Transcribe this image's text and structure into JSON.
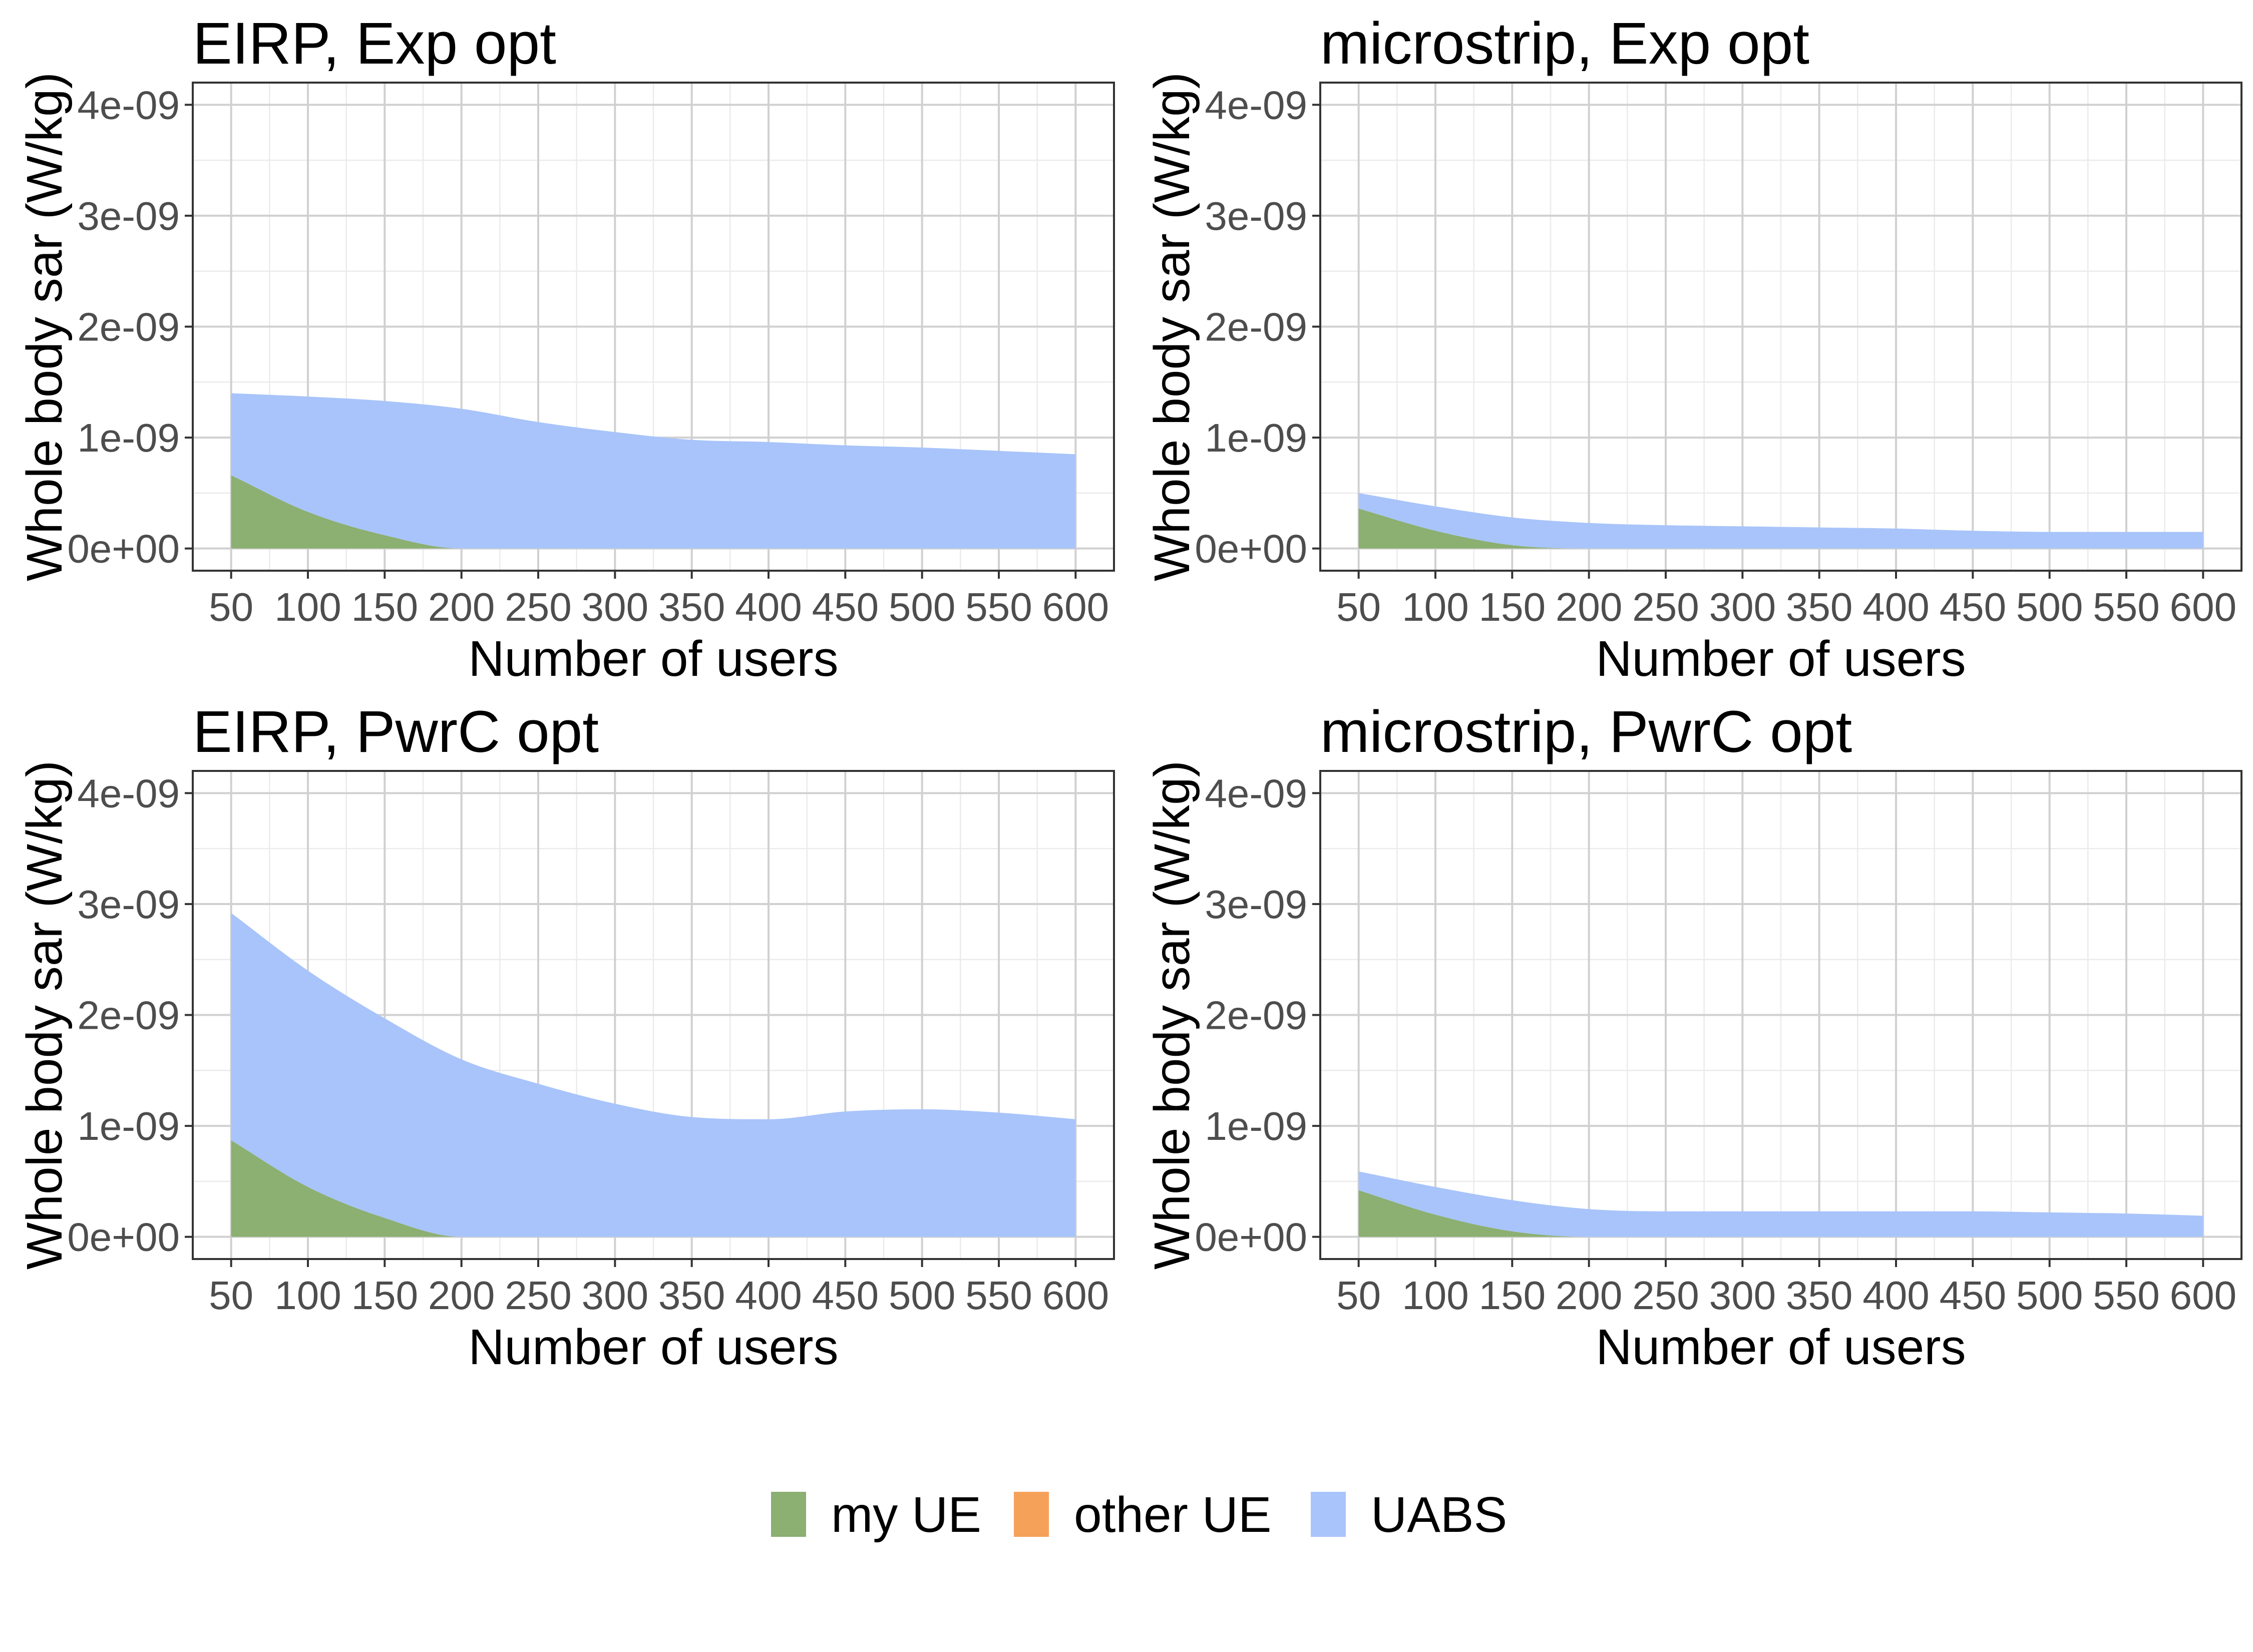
{
  "chart_data": [
    {
      "type": "area",
      "stacked": true,
      "title": "EIRP, Exp opt",
      "xlabel": "Number of users",
      "ylabel": "Whole body sar (W/kg)",
      "x": [
        50,
        100,
        150,
        200,
        250,
        300,
        350,
        400,
        450,
        500,
        550,
        600
      ],
      "xticks": [
        "50",
        "100",
        "150",
        "200",
        "250",
        "300",
        "350",
        "400",
        "450",
        "500",
        "550",
        "600"
      ],
      "yticks": [
        "0e+00",
        "1e-09",
        "2e-09",
        "3e-09",
        "4e-09"
      ],
      "ytick_values": [
        0,
        1e-09,
        2e-09,
        3e-09,
        4e-09
      ],
      "ylim": [
        -2e-10,
        4.2e-09
      ],
      "xlim": [
        25,
        625
      ],
      "grid": true,
      "series": [
        {
          "name": "my UE",
          "values": [
            6.6e-10,
            3.3e-10,
            1.2e-10,
            0,
            0,
            0,
            0,
            0,
            0,
            0,
            0,
            0
          ]
        },
        {
          "name": "other UE",
          "values": [
            0,
            0,
            0,
            0,
            0,
            0,
            0,
            0,
            0,
            0,
            0,
            0
          ]
        },
        {
          "name": "UABS",
          "values": [
            7.4e-10,
            1.04e-09,
            1.21e-09,
            1.26e-09,
            1.14e-09,
            1.05e-09,
            9.8e-10,
            9.6e-10,
            9.3e-10,
            9.1e-10,
            8.8e-10,
            8.5e-10
          ]
        }
      ]
    },
    {
      "type": "area",
      "stacked": true,
      "title": "microstrip, Exp opt",
      "xlabel": "Number of users",
      "ylabel": "Whole body sar (W/kg)",
      "x": [
        50,
        100,
        150,
        200,
        250,
        300,
        350,
        400,
        450,
        500,
        550,
        600
      ],
      "xticks": [
        "50",
        "100",
        "150",
        "200",
        "250",
        "300",
        "350",
        "400",
        "450",
        "500",
        "550",
        "600"
      ],
      "yticks": [
        "0e+00",
        "1e-09",
        "2e-09",
        "3e-09",
        "4e-09"
      ],
      "ytick_values": [
        0,
        1e-09,
        2e-09,
        3e-09,
        4e-09
      ],
      "ylim": [
        -2e-10,
        4.2e-09
      ],
      "xlim": [
        25,
        625
      ],
      "grid": true,
      "series": [
        {
          "name": "my UE",
          "values": [
            3.6e-10,
            1.6e-10,
            3e-11,
            0,
            0,
            0,
            0,
            0,
            0,
            0,
            0,
            0
          ]
        },
        {
          "name": "other UE",
          "values": [
            0,
            0,
            0,
            0,
            0,
            0,
            0,
            0,
            0,
            0,
            0,
            0
          ]
        },
        {
          "name": "UABS",
          "values": [
            1.4e-10,
            2.2e-10,
            2.5e-10,
            2.3e-10,
            2.1e-10,
            2e-10,
            1.9e-10,
            1.8e-10,
            1.6e-10,
            1.5e-10,
            1.5e-10,
            1.5e-10
          ]
        }
      ]
    },
    {
      "type": "area",
      "stacked": true,
      "title": "EIRP, PwrC opt",
      "xlabel": "Number of users",
      "ylabel": "Whole body sar (W/kg)",
      "x": [
        50,
        100,
        150,
        200,
        250,
        300,
        350,
        400,
        450,
        500,
        550,
        600
      ],
      "xticks": [
        "50",
        "100",
        "150",
        "200",
        "250",
        "300",
        "350",
        "400",
        "450",
        "500",
        "550",
        "600"
      ],
      "yticks": [
        "0e+00",
        "1e-09",
        "2e-09",
        "3e-09",
        "4e-09"
      ],
      "ytick_values": [
        0,
        1e-09,
        2e-09,
        3e-09,
        4e-09
      ],
      "ylim": [
        -2e-10,
        4.2e-09
      ],
      "xlim": [
        25,
        625
      ],
      "grid": true,
      "series": [
        {
          "name": "my UE",
          "values": [
            8.7e-10,
            4.5e-10,
            1.7e-10,
            0,
            0,
            0,
            0,
            0,
            0,
            0,
            0,
            0
          ]
        },
        {
          "name": "other UE",
          "values": [
            0,
            0,
            0,
            0,
            0,
            0,
            0,
            0,
            0,
            0,
            0,
            0
          ]
        },
        {
          "name": "UABS",
          "values": [
            2.05e-09,
            1.95e-09,
            1.8e-09,
            1.6e-09,
            1.38e-09,
            1.2e-09,
            1.08e-09,
            1.06e-09,
            1.13e-09,
            1.15e-09,
            1.12e-09,
            1.06e-09
          ]
        }
      ]
    },
    {
      "type": "area",
      "stacked": true,
      "title": "microstrip, PwrC opt",
      "xlabel": "Number of users",
      "ylabel": "Whole body sar (W/kg)",
      "x": [
        50,
        100,
        150,
        200,
        250,
        300,
        350,
        400,
        450,
        500,
        550,
        600
      ],
      "xticks": [
        "50",
        "100",
        "150",
        "200",
        "250",
        "300",
        "350",
        "400",
        "450",
        "500",
        "550",
        "600"
      ],
      "yticks": [
        "0e+00",
        "1e-09",
        "2e-09",
        "3e-09",
        "4e-09"
      ],
      "ytick_values": [
        0,
        1e-09,
        2e-09,
        3e-09,
        4e-09
      ],
      "ylim": [
        -2e-10,
        4.2e-09
      ],
      "xlim": [
        25,
        625
      ],
      "grid": true,
      "series": [
        {
          "name": "my UE",
          "values": [
            4.2e-10,
            2e-10,
            5e-11,
            0,
            0,
            0,
            0,
            0,
            0,
            0,
            0,
            0
          ]
        },
        {
          "name": "other UE",
          "values": [
            0,
            0,
            0,
            0,
            0,
            0,
            0,
            0,
            0,
            0,
            0,
            0
          ]
        },
        {
          "name": "UABS",
          "values": [
            1.7e-10,
            2.5e-10,
            2.8e-10,
            2.5e-10,
            2.3e-10,
            2.3e-10,
            2.3e-10,
            2.3e-10,
            2.3e-10,
            2.2e-10,
            2.1e-10,
            1.9e-10
          ]
        }
      ]
    }
  ],
  "legend": {
    "position": "bottom",
    "items": [
      {
        "label": "my UE",
        "color": "#8CAF72"
      },
      {
        "label": "other UE",
        "color": "#F5A15A"
      },
      {
        "label": "UABS",
        "color": "#A8C4FA"
      }
    ]
  },
  "colors": {
    "my UE": "#8CAF72",
    "other UE": "#F5A15A",
    "UABS": "#A8C4FA"
  }
}
